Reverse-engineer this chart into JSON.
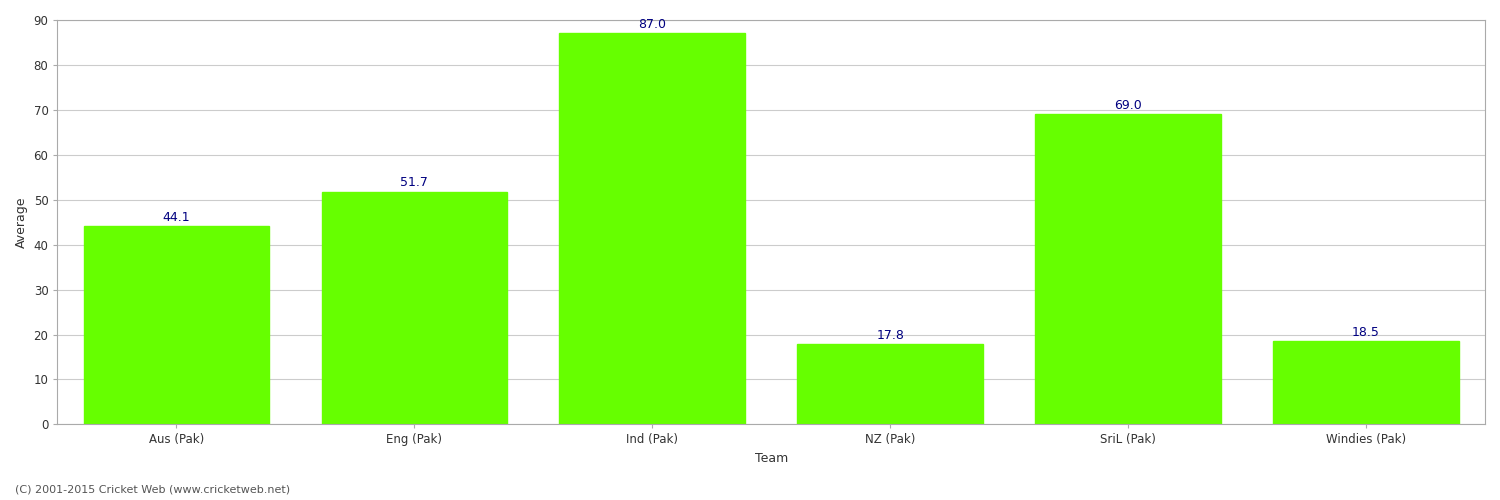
{
  "categories": [
    "Aus (Pak)",
    "Eng (Pak)",
    "Ind (Pak)",
    "NZ (Pak)",
    "SriL (Pak)",
    "Windies (Pak)"
  ],
  "values": [
    44.1,
    51.7,
    87.0,
    17.8,
    69.0,
    18.5
  ],
  "bar_color": "#66ff00",
  "bar_edge_color": "#66ff00",
  "label_color": "#000080",
  "label_fontsize": 9,
  "xlabel": "Team",
  "ylabel": "Average",
  "ylim": [
    0,
    90
  ],
  "yticks": [
    0,
    10,
    20,
    30,
    40,
    50,
    60,
    70,
    80,
    90
  ],
  "grid_color": "#cccccc",
  "background_color": "#ffffff",
  "axes_edge_color": "#aaaaaa",
  "tick_label_fontsize": 8.5,
  "axis_label_fontsize": 9,
  "xlabel_fontsize": 9,
  "bar_width": 0.78,
  "footer_text": "(C) 2001-2015 Cricket Web (www.cricketweb.net)",
  "footer_fontsize": 8,
  "footer_color": "#555555"
}
